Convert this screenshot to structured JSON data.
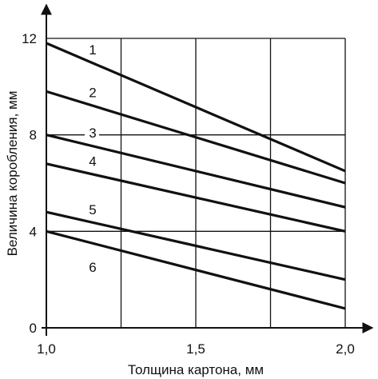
{
  "chart_data": {
    "type": "line",
    "title": "",
    "xlabel": "Толщина картона, мм",
    "ylabel": "Величина коробления, мм",
    "xlim": [
      1.0,
      2.0
    ],
    "ylim": [
      0,
      12
    ],
    "x_ticks": [
      "1,0",
      "1,5",
      "2,0"
    ],
    "y_ticks": [
      "0",
      "4",
      "8",
      "12"
    ],
    "grid": true,
    "grid_x": [
      1.0,
      1.25,
      1.5,
      1.75,
      2.0
    ],
    "grid_y": [
      0,
      4,
      8,
      12
    ],
    "line_color": "#111111",
    "series": [
      {
        "name": "1",
        "x": [
          1.0,
          2.0
        ],
        "y": [
          11.8,
          6.5
        ]
      },
      {
        "name": "2",
        "x": [
          1.0,
          2.0
        ],
        "y": [
          9.8,
          6.0
        ]
      },
      {
        "name": "3",
        "x": [
          1.0,
          2.0
        ],
        "y": [
          8.0,
          5.0
        ]
      },
      {
        "name": "4",
        "x": [
          1.0,
          2.0
        ],
        "y": [
          6.8,
          4.0
        ]
      },
      {
        "name": "5",
        "x": [
          1.0,
          2.0
        ],
        "y": [
          4.8,
          2.0
        ]
      },
      {
        "name": "6",
        "x": [
          1.0,
          2.0
        ],
        "y": [
          4.0,
          0.8
        ]
      }
    ]
  }
}
